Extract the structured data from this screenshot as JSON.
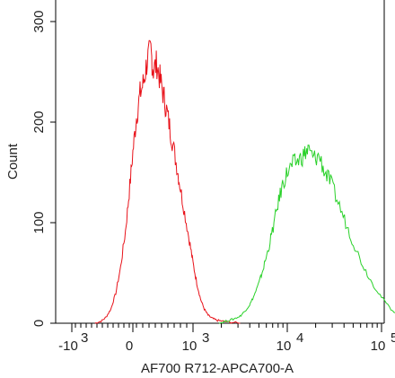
{
  "chart_data": {
    "type": "line",
    "xlabel": "AF700 R712-APCA700-A",
    "ylabel": "Count",
    "ylim": [
      0,
      330
    ],
    "x_ticks": [
      "-10",
      "0",
      "10",
      "10",
      "10"
    ],
    "x_tick_exponents": [
      "3",
      "",
      "3",
      "4",
      "5"
    ],
    "y_ticks": [
      "0",
      "100",
      "200",
      "300"
    ],
    "grid": false,
    "x_scale": "biexponential",
    "series": [
      {
        "color": "#e8121a",
        "points": [
          [
            -0.62,
            0
          ],
          [
            -0.52,
            2
          ],
          [
            -0.44,
            6
          ],
          [
            -0.36,
            14
          ],
          [
            -0.28,
            30
          ],
          [
            -0.2,
            56
          ],
          [
            -0.12,
            92
          ],
          [
            -0.06,
            130
          ],
          [
            0.0,
            170
          ],
          [
            0.06,
            205
          ],
          [
            0.12,
            228
          ],
          [
            0.18,
            240
          ],
          [
            0.24,
            262
          ],
          [
            0.3,
            270
          ],
          [
            0.34,
            252
          ],
          [
            0.4,
            258
          ],
          [
            0.46,
            240
          ],
          [
            0.52,
            224
          ],
          [
            0.58,
            206
          ],
          [
            0.64,
            186
          ],
          [
            0.72,
            160
          ],
          [
            0.78,
            138
          ],
          [
            0.86,
            110
          ],
          [
            0.94,
            82
          ],
          [
            1.0,
            60
          ],
          [
            1.08,
            40
          ],
          [
            1.16,
            24
          ],
          [
            1.24,
            14
          ],
          [
            1.32,
            8
          ],
          [
            1.4,
            5
          ],
          [
            1.5,
            3
          ],
          [
            1.62,
            2
          ],
          [
            1.8,
            1
          ],
          [
            2.0,
            0
          ]
        ]
      },
      {
        "color": "#2ad12a",
        "points": [
          [
            1.55,
            0
          ],
          [
            1.7,
            2
          ],
          [
            1.85,
            4
          ],
          [
            2.0,
            7
          ],
          [
            2.1,
            12
          ],
          [
            2.2,
            18
          ],
          [
            2.3,
            28
          ],
          [
            2.4,
            40
          ],
          [
            2.5,
            56
          ],
          [
            2.6,
            74
          ],
          [
            2.7,
            95
          ],
          [
            2.8,
            118
          ],
          [
            2.9,
            138
          ],
          [
            3.0,
            150
          ],
          [
            3.06,
            158
          ],
          [
            3.12,
            162
          ],
          [
            3.18,
            168
          ],
          [
            3.22,
            172
          ],
          [
            3.28,
            164
          ],
          [
            3.34,
            166
          ],
          [
            3.4,
            150
          ],
          [
            3.46,
            140
          ],
          [
            3.54,
            120
          ],
          [
            3.62,
            100
          ],
          [
            3.7,
            80
          ],
          [
            3.8,
            58
          ],
          [
            3.9,
            40
          ],
          [
            4.0,
            26
          ],
          [
            4.1,
            14
          ],
          [
            4.2,
            7
          ],
          [
            4.3,
            3
          ],
          [
            4.4,
            1
          ],
          [
            4.5,
            0
          ]
        ]
      }
    ]
  }
}
